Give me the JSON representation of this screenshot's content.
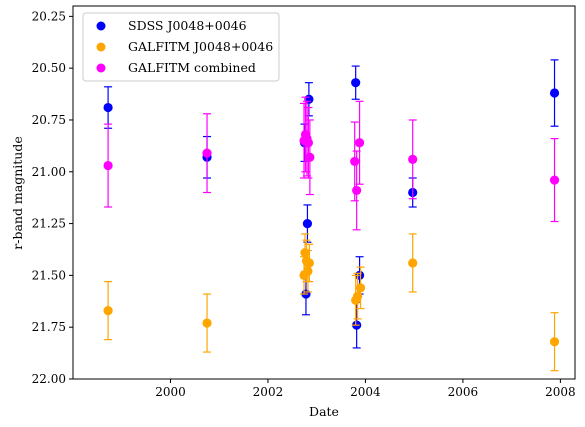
{
  "chart_data": {
    "type": "scatter",
    "xlabel": "Date",
    "ylabel": "r-band magnitude",
    "xlim": [
      1998.0,
      2008.3
    ],
    "ylim": [
      22.0,
      20.2
    ],
    "y_inverted": true,
    "x_ticks": [
      2000,
      2002,
      2004,
      2006,
      2008
    ],
    "y_ticks": [
      20.25,
      20.5,
      20.75,
      21.0,
      21.25,
      21.5,
      21.75,
      22.0
    ],
    "x_tick_labels": [
      "2000",
      "2002",
      "2004",
      "2006",
      "2008"
    ],
    "y_tick_labels": [
      "20.25",
      "20.50",
      "20.75",
      "21.00",
      "21.25",
      "21.50",
      "21.75",
      "22.00"
    ],
    "grid": false,
    "legend_position": "top-left",
    "series": [
      {
        "name": "SDSS J0048+0046",
        "color": "#0000ff",
        "points": [
          {
            "x": 1998.72,
            "y": 20.69,
            "err": 0.1
          },
          {
            "x": 2000.75,
            "y": 20.93,
            "err": 0.1
          },
          {
            "x": 2002.75,
            "y": 20.86,
            "err": 0.09
          },
          {
            "x": 2002.78,
            "y": 21.59,
            "err": 0.1
          },
          {
            "x": 2002.81,
            "y": 21.25,
            "err": 0.09
          },
          {
            "x": 2002.84,
            "y": 20.65,
            "err": 0.08
          },
          {
            "x": 2003.8,
            "y": 20.57,
            "err": 0.08
          },
          {
            "x": 2003.82,
            "y": 21.74,
            "err": 0.11
          },
          {
            "x": 2003.88,
            "y": 21.5,
            "err": 0.09
          },
          {
            "x": 2004.97,
            "y": 21.1,
            "err": 0.07
          },
          {
            "x": 2007.88,
            "y": 20.62,
            "err": 0.16
          }
        ]
      },
      {
        "name": "GALFITM J0048+0046",
        "color": "#ffa500",
        "points": [
          {
            "x": 1998.72,
            "y": 21.67,
            "err": 0.14
          },
          {
            "x": 2000.75,
            "y": 21.73,
            "err": 0.14
          },
          {
            "x": 2002.74,
            "y": 21.5,
            "err": 0.09
          },
          {
            "x": 2002.76,
            "y": 21.39,
            "err": 0.09
          },
          {
            "x": 2002.79,
            "y": 21.43,
            "err": 0.1
          },
          {
            "x": 2002.82,
            "y": 21.48,
            "err": 0.1
          },
          {
            "x": 2002.85,
            "y": 21.44,
            "err": 0.09
          },
          {
            "x": 2003.8,
            "y": 21.62,
            "err": 0.12
          },
          {
            "x": 2003.84,
            "y": 21.6,
            "err": 0.11
          },
          {
            "x": 2003.9,
            "y": 21.56,
            "err": 0.1
          },
          {
            "x": 2004.97,
            "y": 21.44,
            "err": 0.14
          },
          {
            "x": 2007.88,
            "y": 21.82,
            "err": 0.14
          }
        ]
      },
      {
        "name": "GALFITM combined",
        "color": "#ff00ff",
        "points": [
          {
            "x": 1998.72,
            "y": 20.97,
            "err": 0.2
          },
          {
            "x": 2000.75,
            "y": 20.91,
            "err": 0.19
          },
          {
            "x": 2002.74,
            "y": 20.85,
            "err": 0.18
          },
          {
            "x": 2002.77,
            "y": 20.82,
            "err": 0.18
          },
          {
            "x": 2002.8,
            "y": 20.84,
            "err": 0.18
          },
          {
            "x": 2002.83,
            "y": 20.86,
            "err": 0.17
          },
          {
            "x": 2002.86,
            "y": 20.93,
            "err": 0.18
          },
          {
            "x": 2003.78,
            "y": 20.95,
            "err": 0.19
          },
          {
            "x": 2003.82,
            "y": 21.09,
            "err": 0.19
          },
          {
            "x": 2003.88,
            "y": 20.86,
            "err": 0.2
          },
          {
            "x": 2004.97,
            "y": 20.94,
            "err": 0.19
          },
          {
            "x": 2007.88,
            "y": 21.04,
            "err": 0.2
          }
        ]
      }
    ]
  }
}
